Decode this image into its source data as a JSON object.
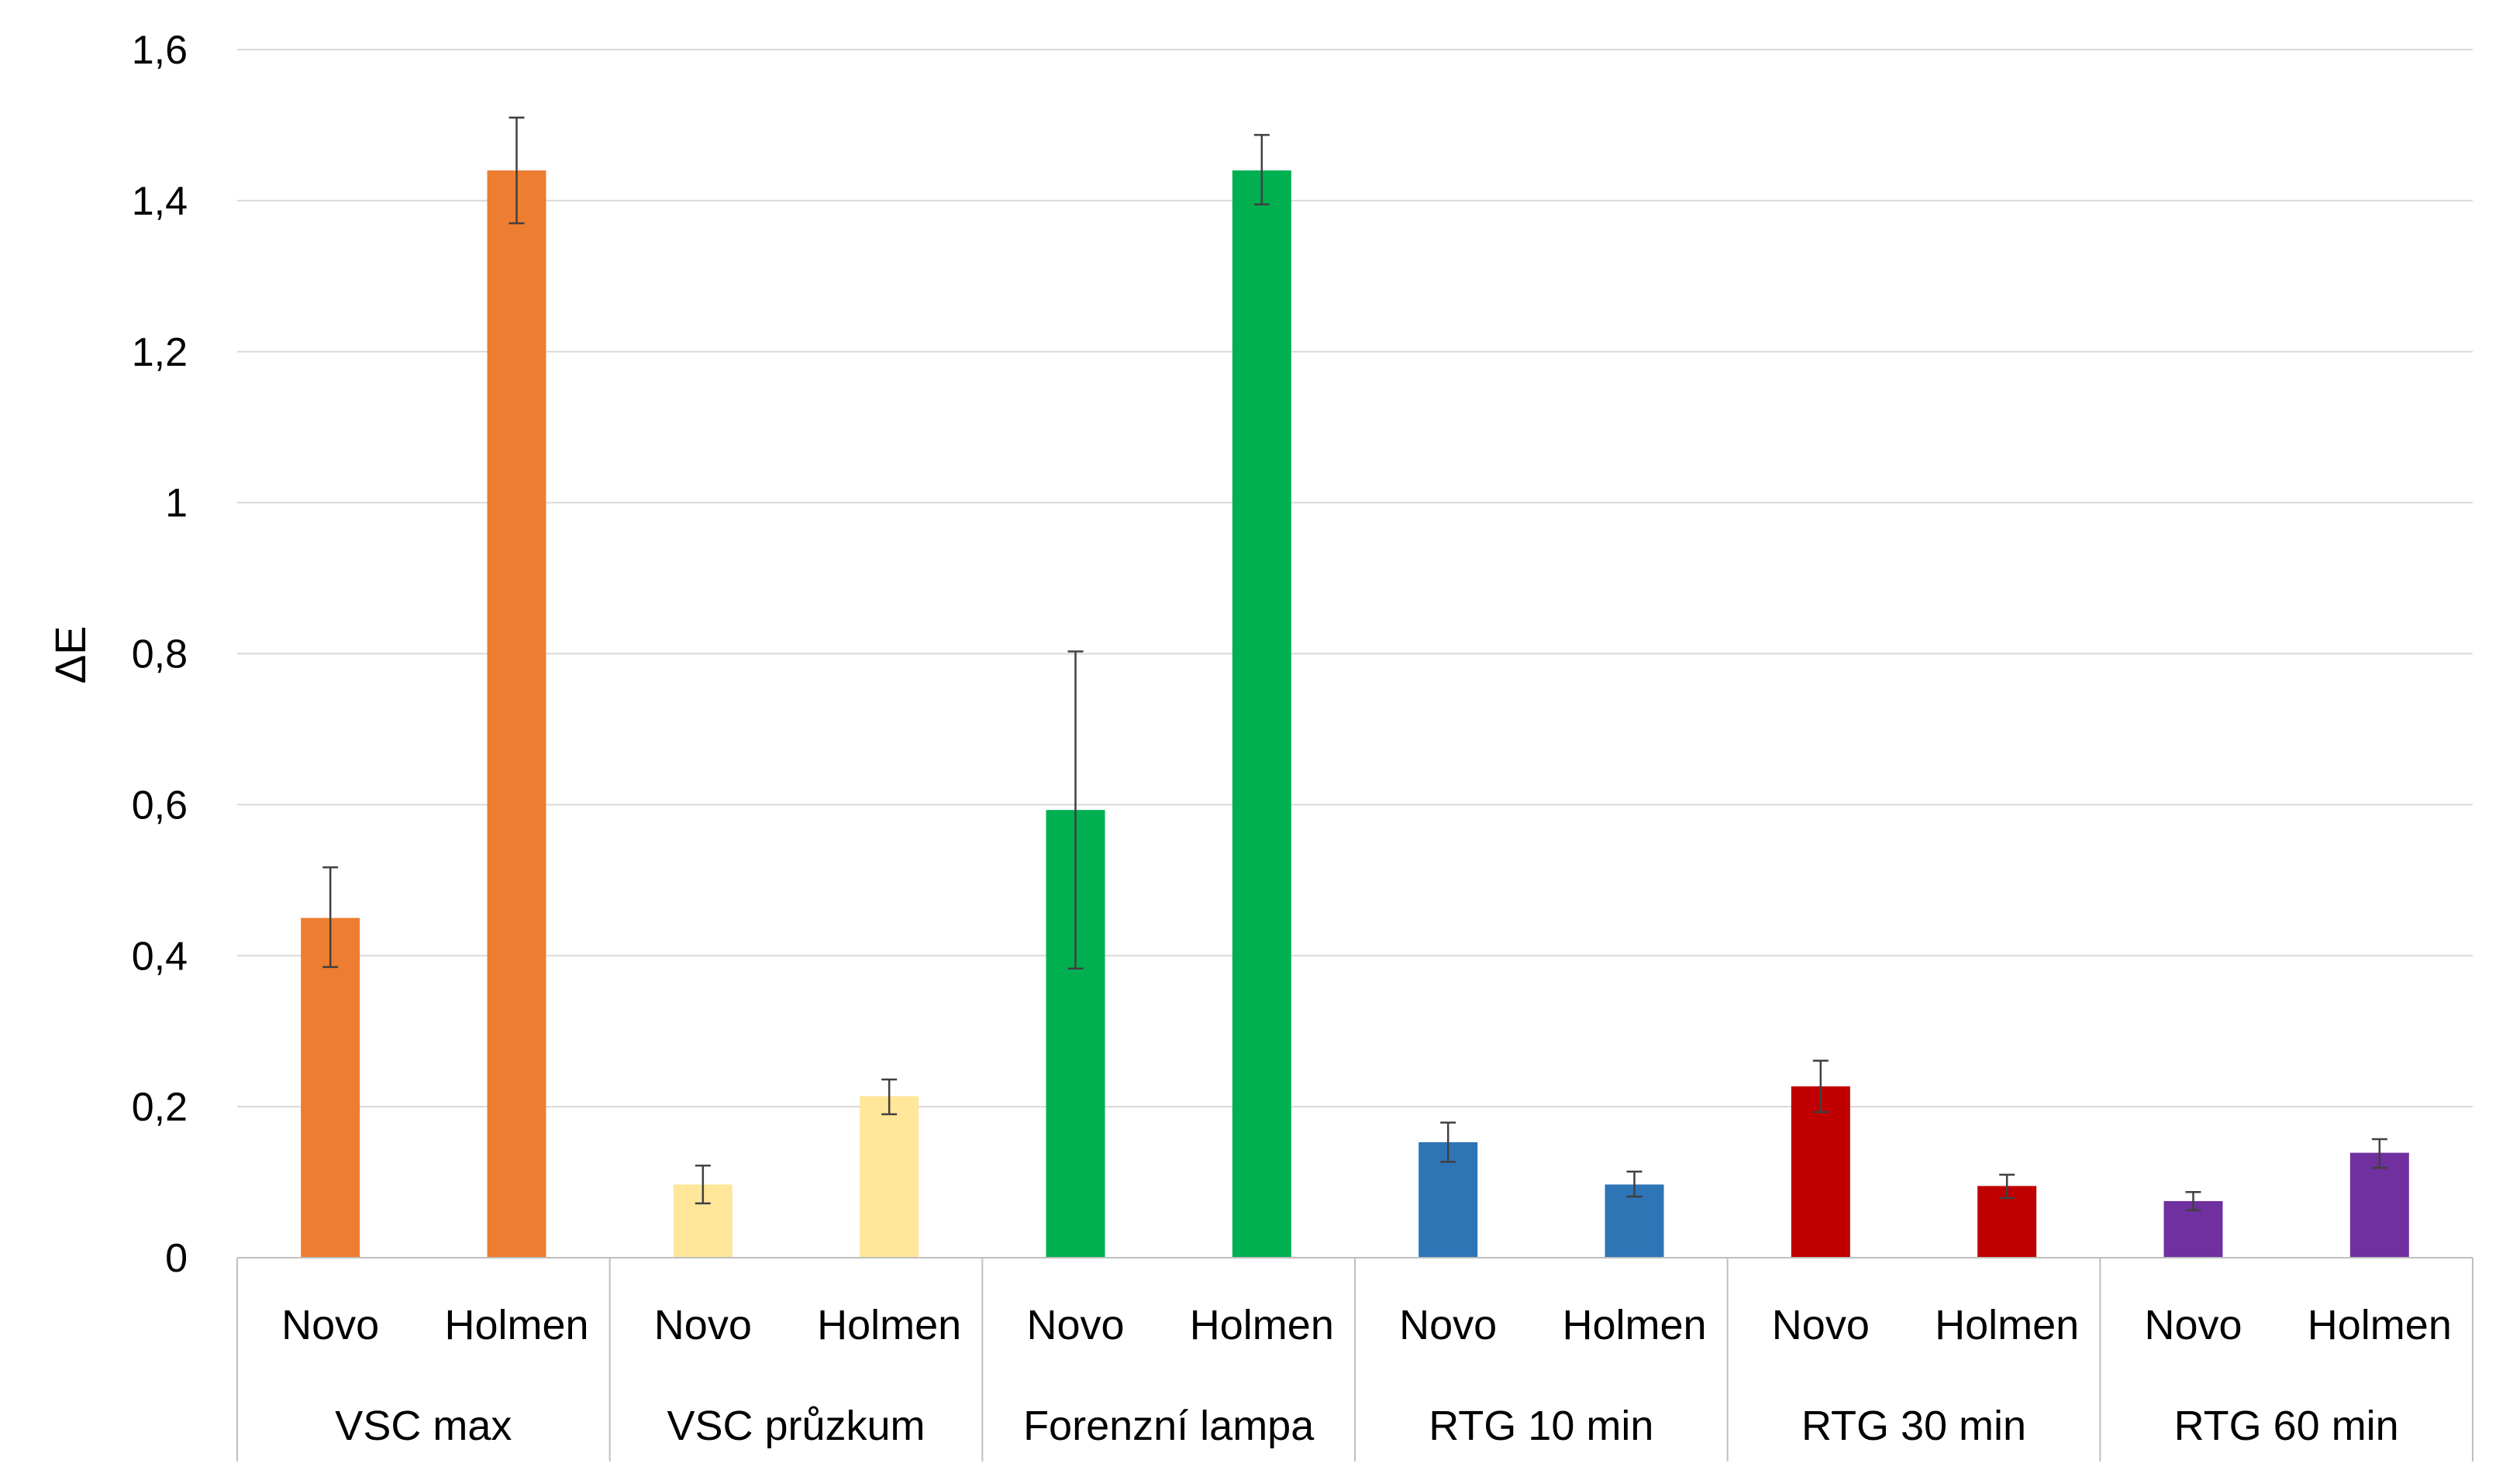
{
  "chart_data": {
    "type": "bar",
    "title": "",
    "xlabel": "",
    "ylabel": "ΔE",
    "ylim": [
      0,
      1.6
    ],
    "yticks": [
      "0",
      "0,2",
      "0,4",
      "0,6",
      "0,8",
      "1",
      "1,2",
      "1,4",
      "1,6"
    ],
    "grid": true,
    "legend": "none",
    "groups": [
      {
        "name": "VSC max",
        "color": "#ED7D31",
        "bars": [
          {
            "label": "Novo",
            "value": 0.45,
            "err_low": 0.385,
            "err_high": 0.517
          },
          {
            "label": "Holmen",
            "value": 1.44,
            "err_low": 1.37,
            "err_high": 1.51
          }
        ]
      },
      {
        "name": "VSC průzkum",
        "color": "#FFE699",
        "bars": [
          {
            "label": "Novo",
            "value": 0.097,
            "err_low": 0.072,
            "err_high": 0.122
          },
          {
            "label": "Holmen",
            "value": 0.214,
            "err_low": 0.19,
            "err_high": 0.236
          }
        ]
      },
      {
        "name": "Forenzní lampa",
        "color": "#00B050",
        "bars": [
          {
            "label": "Novo",
            "value": 0.593,
            "err_low": 0.383,
            "err_high": 0.803
          },
          {
            "label": "Holmen",
            "value": 1.44,
            "err_low": 1.395,
            "err_high": 1.487
          }
        ]
      },
      {
        "name": "RTG 10 min",
        "color": "#2E75B6",
        "bars": [
          {
            "label": "Novo",
            "value": 0.153,
            "err_low": 0.127,
            "err_high": 0.179
          },
          {
            "label": "Holmen",
            "value": 0.097,
            "err_low": 0.081,
            "err_high": 0.114
          }
        ]
      },
      {
        "name": "RTG 30 min",
        "color": "#C00000",
        "bars": [
          {
            "label": "Novo",
            "value": 0.227,
            "err_low": 0.193,
            "err_high": 0.261
          },
          {
            "label": "Holmen",
            "value": 0.095,
            "err_low": 0.079,
            "err_high": 0.11
          }
        ]
      },
      {
        "name": "RTG 60 min",
        "color": "#7030A0",
        "bars": [
          {
            "label": "Novo",
            "value": 0.075,
            "err_low": 0.063,
            "err_high": 0.087
          },
          {
            "label": "Holmen",
            "value": 0.139,
            "err_low": 0.119,
            "err_high": 0.157
          }
        ]
      }
    ]
  }
}
